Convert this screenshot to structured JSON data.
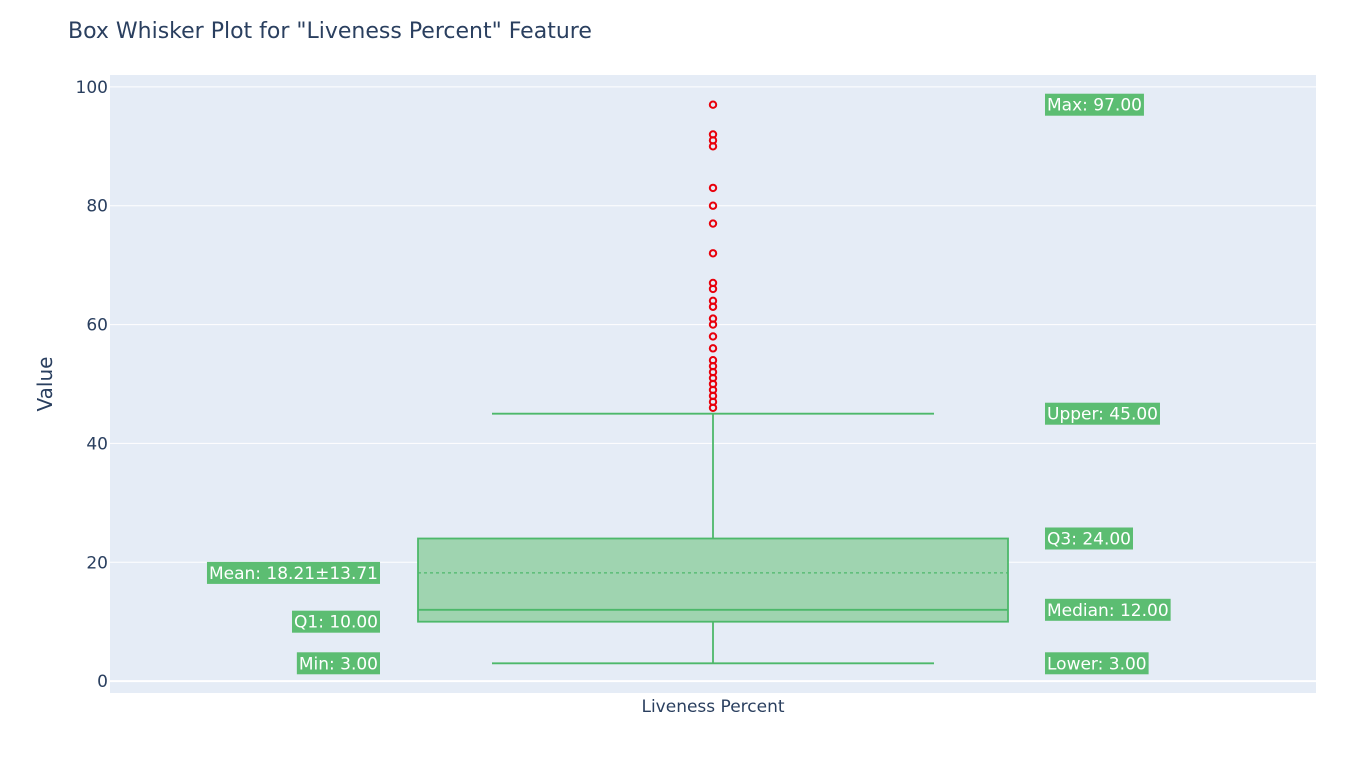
{
  "chart_data": {
    "type": "box",
    "title": "Box Whisker Plot for \"Liveness Percent\" Feature",
    "xlabel": "",
    "ylabel": "Value",
    "category": "Liveness Percent",
    "ylim": [
      -2,
      102
    ],
    "yticks": [
      0,
      20,
      40,
      60,
      80,
      100
    ],
    "grid": true,
    "box": {
      "min": 3,
      "q1": 10,
      "median": 12,
      "q3": 24,
      "lower_fence": 3,
      "upper_fence": 45,
      "mean": 18.21,
      "sd": 13.71,
      "max": 97
    },
    "outliers": [
      46,
      47,
      48,
      49,
      50,
      51,
      52,
      53,
      54,
      56,
      58,
      60,
      61,
      63,
      64,
      66,
      67,
      72,
      77,
      80,
      83,
      90,
      91,
      92,
      97
    ],
    "annotations": {
      "left": [
        {
          "label": "Mean: 18.21±13.71",
          "y": 18.21
        },
        {
          "label": "Q1: 10.00",
          "y": 10
        },
        {
          "label": "Min: 3.00",
          "y": 3
        }
      ],
      "right": [
        {
          "label": "Max: 97.00",
          "y": 97
        },
        {
          "label": "Upper: 45.00",
          "y": 45
        },
        {
          "label": "Q3: 24.00",
          "y": 24
        },
        {
          "label": "Median: 12.00",
          "y": 12
        },
        {
          "label": "Lower: 3.00",
          "y": 3
        }
      ]
    },
    "colors": {
      "plot_bg": "#e5ecf6",
      "box_line": "#4db86a",
      "box_fill": "#9fd4b0",
      "outlier": "#e8000b",
      "annotation_bg": "#5cbd72",
      "text": "#2a3f5f"
    }
  }
}
